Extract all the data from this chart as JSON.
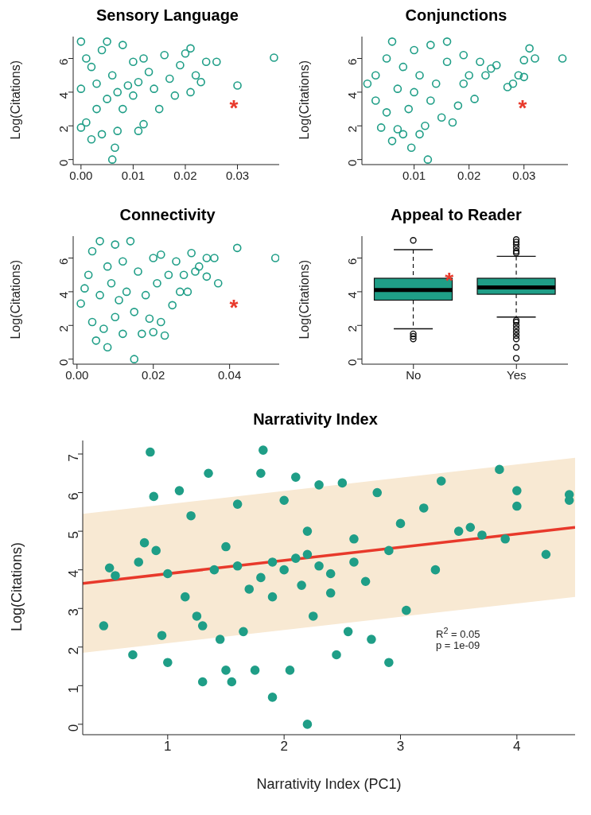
{
  "chart_data": [
    {
      "type": "scatter",
      "title": "Sensory Language",
      "ylabel": "Log(Citations)",
      "marker": "circle",
      "color": "#1f9e87",
      "x": [
        0,
        0,
        0,
        0.001,
        0.001,
        0.002,
        0.002,
        0.003,
        0.003,
        0.004,
        0.004,
        0.005,
        0.005,
        0.006,
        0.006,
        0.0065,
        0.007,
        0.007,
        0.008,
        0.008,
        0.009,
        0.01,
        0.01,
        0.011,
        0.011,
        0.012,
        0.012,
        0.013,
        0.014,
        0.015,
        0.016,
        0.017,
        0.018,
        0.019,
        0.02,
        0.021,
        0.021,
        0.022,
        0.023,
        0.024,
        0.026,
        0.03,
        0.037
      ],
      "values": [
        7,
        4.2,
        1.9,
        6,
        2.2,
        1.2,
        5.5,
        4.5,
        3,
        6.5,
        1.5,
        7,
        3.6,
        0,
        5,
        0.7,
        1.7,
        4,
        6.8,
        3,
        4.4,
        5.8,
        3.8,
        1.7,
        4.6,
        2.1,
        6,
        5.2,
        4.2,
        3,
        6.2,
        4.8,
        3.8,
        5.6,
        6.3,
        4,
        6.6,
        5,
        4.6,
        5.8,
        5.8,
        4.4,
        6.05
      ],
      "xlim": [
        -0.0015,
        0.038
      ],
      "xticks": [
        {
          "value": 0,
          "label": "0.00"
        },
        0.01,
        0.02,
        0.03
      ],
      "ylim": [
        -0.3,
        7.3
      ],
      "yticks": [
        0,
        2,
        4,
        6
      ],
      "annotations": [
        "*"
      ]
    },
    {
      "type": "scatter",
      "title": "Conjunctions",
      "ylabel": "Log(Citations)",
      "marker": "circle",
      "color": "#1f9e87",
      "x": [
        0.0015,
        0.003,
        0.003,
        0.004,
        0.005,
        0.005,
        0.006,
        0.006,
        0.007,
        0.007,
        0.008,
        0.008,
        0.009,
        0.0095,
        0.01,
        0.01,
        0.011,
        0.011,
        0.012,
        0.0125,
        0.013,
        0.013,
        0.014,
        0.015,
        0.016,
        0.016,
        0.017,
        0.018,
        0.019,
        0.019,
        0.02,
        0.021,
        0.022,
        0.023,
        0.024,
        0.025,
        0.027,
        0.028,
        0.029,
        0.03,
        0.031,
        0.03,
        0.032,
        0.037
      ],
      "values": [
        4.5,
        3.5,
        5,
        1.9,
        6,
        2.8,
        1.1,
        7,
        4.2,
        1.8,
        1.5,
        5.5,
        3,
        0.7,
        6.5,
        4,
        1.5,
        5,
        2,
        0,
        6.8,
        3.5,
        4.5,
        2.5,
        7,
        5.8,
        2.2,
        3.2,
        6.2,
        4.5,
        5,
        3.6,
        5.8,
        5,
        5.4,
        5.6,
        4.3,
        4.5,
        5,
        4.9,
        6.6,
        5.9,
        6,
        6
      ],
      "xlim": [
        0.0005,
        0.038
      ],
      "xticks": [
        0.01,
        0.02,
        0.03
      ],
      "ylim": [
        -0.3,
        7.3
      ],
      "yticks": [
        0,
        2,
        4,
        6
      ],
      "annotations": [
        "*"
      ]
    },
    {
      "type": "scatter",
      "title": "Connectivity",
      "ylabel": "Log(Citations)",
      "marker": "circle",
      "color": "#1f9e87",
      "x": [
        0.001,
        0.002,
        0.003,
        0.004,
        0.004,
        0.005,
        0.006,
        0.006,
        0.007,
        0.008,
        0.008,
        0.009,
        0.01,
        0.01,
        0.011,
        0.012,
        0.012,
        0.013,
        0.014,
        0.015,
        0.015,
        0.016,
        0.017,
        0.018,
        0.019,
        0.02,
        0.02,
        0.021,
        0.022,
        0.022,
        0.023,
        0.024,
        0.025,
        0.026,
        0.027,
        0.028,
        0.029,
        0.03,
        0.031,
        0.032,
        0.034,
        0.034,
        0.036,
        0.037,
        0.042,
        0.052
      ],
      "values": [
        3.3,
        4.2,
        5,
        2.2,
        6.4,
        1.1,
        7,
        3.8,
        1.8,
        0.7,
        5.5,
        4.5,
        6.8,
        2.5,
        3.5,
        1.5,
        5.8,
        4,
        7,
        0,
        2.8,
        5.2,
        1.5,
        3.8,
        2.4,
        6,
        1.6,
        4.5,
        2.2,
        6.2,
        1.4,
        5,
        3.2,
        5.8,
        4,
        5,
        4,
        6.3,
        5.2,
        5.5,
        4.9,
        6,
        6,
        4.5,
        6.6,
        6
      ],
      "xlim": [
        -0.001,
        0.053
      ],
      "xticks": [
        {
          "value": 0,
          "label": "0.00"
        },
        {
          "value": 0.02,
          "label": "0.02"
        },
        {
          "value": 0.04,
          "label": "0.04"
        }
      ],
      "ylim": [
        -0.3,
        7.3
      ],
      "yticks": [
        0,
        2,
        4,
        6
      ],
      "annotations": [
        "*"
      ]
    },
    {
      "type": "box",
      "title": "Appeal to Reader",
      "ylabel": "Log(Citations)",
      "color": "#1f9e87",
      "categories": [
        "No",
        "Yes"
      ],
      "boxes": [
        {
          "low": 1.8,
          "q1": 3.5,
          "median": 4.1,
          "q3": 4.8,
          "high": 6.5,
          "outliers": [
            7.05,
            1.5,
            1.35,
            1.2
          ]
        },
        {
          "low": 2.5,
          "q1": 3.85,
          "median": 4.25,
          "q3": 4.8,
          "high": 6.1,
          "outliers": [
            7.1,
            6.95,
            6.8,
            6.6,
            6.4,
            6.3,
            2.3,
            2.2,
            2,
            1.8,
            1.6,
            1.4,
            1.2,
            0.7,
            0.05
          ]
        }
      ],
      "ylim": [
        -0.3,
        7.3
      ],
      "yticks": [
        0,
        2,
        4,
        6
      ],
      "annotations": [
        "*"
      ]
    },
    {
      "type": "scatter",
      "title": "Narrativity Index",
      "xlabel": "Narrativity Index (PC1)",
      "ylabel": "Log(Citations)",
      "series": [
        {
          "type": "scatter",
          "marker": "circle",
          "color": "#1f9e87",
          "x": [
            0.45,
            0.5,
            0.55,
            0.7,
            0.75,
            0.8,
            0.85,
            0.88,
            0.9,
            0.95,
            1,
            1,
            1.1,
            1.15,
            1.2,
            1.25,
            1.3,
            1.3,
            1.35,
            1.4,
            1.45,
            1.5,
            1.55,
            1.6,
            1.65,
            1.7,
            1.75,
            1.8,
            1.82,
            1.9,
            1.9,
            2,
            2.05,
            2.1,
            2.15,
            2.2,
            2.2,
            2.25,
            2.3,
            2.4,
            2.45,
            2.5,
            2.55,
            2.6,
            2.7,
            2.75,
            2.8,
            2.9,
            2.9,
            3,
            3.05,
            3.2,
            3.3,
            3.35,
            3.5,
            3.6,
            3.7,
            3.85,
            3.9,
            4,
            4,
            4.25,
            4.45,
            4.45,
            1.6,
            1.8,
            2,
            2.1,
            2.3,
            2.4,
            1.5,
            2.6,
            1.9,
            2.2
          ],
          "values": [
            2.55,
            4.05,
            3.85,
            1.8,
            4.2,
            4.7,
            7.05,
            5.9,
            4.5,
            2.3,
            1.6,
            3.9,
            6.05,
            3.3,
            5.4,
            2.8,
            1.1,
            2.55,
            6.5,
            4,
            2.2,
            1.4,
            1.1,
            5.7,
            2.4,
            3.5,
            1.4,
            6.5,
            7.1,
            0.7,
            4.2,
            5.8,
            1.4,
            6.4,
            3.6,
            0,
            4.4,
            2.8,
            6.2,
            3.9,
            1.8,
            6.25,
            2.4,
            4.8,
            3.7,
            2.2,
            6,
            1.6,
            4.5,
            5.2,
            2.95,
            5.6,
            4,
            6.3,
            5,
            5.1,
            4.9,
            6.6,
            4.8,
            6.05,
            5.65,
            4.4,
            5.8,
            5.95,
            4.1,
            3.8,
            4,
            4.3,
            4.1,
            3.4,
            4.6,
            4.2,
            3.3,
            5
          ]
        },
        {
          "type": "line",
          "marker": "none",
          "color": "#e8392b",
          "x": [
            0.27,
            4.5
          ],
          "values": [
            3.65,
            5.1
          ],
          "lower": [
            1.85,
            3.3
          ],
          "upper": [
            5.45,
            6.9
          ]
        }
      ],
      "xlim": [
        0.27,
        4.5
      ],
      "xticks": [
        1,
        2,
        3,
        4
      ],
      "ylim": [
        -0.27,
        7.35
      ],
      "yticks": [
        0,
        1,
        2,
        3,
        4,
        5,
        6,
        7
      ],
      "annotations": [
        "R$^{2}$ = 0.05",
        "p = 1e-09"
      ]
    }
  ]
}
